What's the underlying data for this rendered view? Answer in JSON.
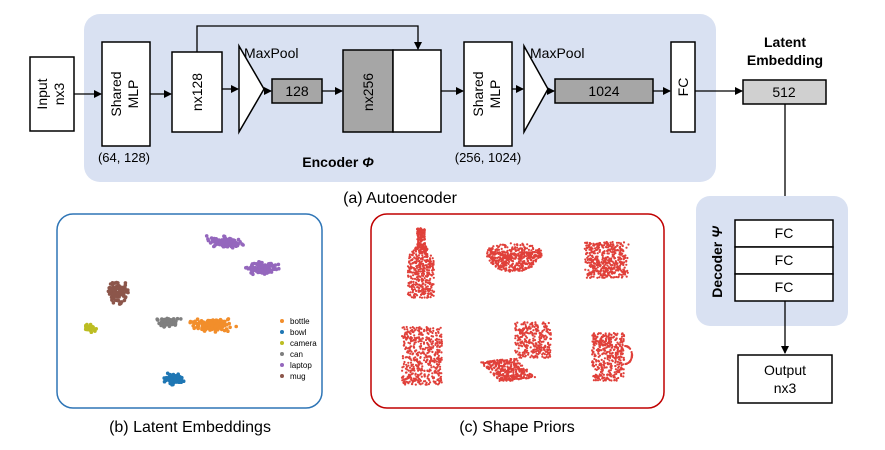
{
  "encoder": {
    "title_text": "Encoder ",
    "title_symbol": "Φ",
    "input_line1": "Input",
    "input_line2": "nx3",
    "mlp1_line1": "Shared",
    "mlp1_line2": "MLP",
    "mlp1_params": "(64, 128)",
    "feat1": "nx128",
    "maxpool1": "MaxPool",
    "global1": "128",
    "concat": "nx256",
    "mlp2_line1": "Shared",
    "mlp2_line2": "MLP",
    "mlp2_params": "(256, 1024)",
    "maxpool2": "MaxPool",
    "global2": "1024",
    "fc": "FC"
  },
  "latent": {
    "title_line1": "Latent",
    "title_line2": "Embedding",
    "value": "512"
  },
  "decoder": {
    "title_text": "Decoder ",
    "title_symbol": "Ψ",
    "layers": [
      "FC",
      "FC",
      "FC"
    ],
    "output_line1": "Output",
    "output_line2": "nx3"
  },
  "captions": {
    "a": "(a) Autoencoder",
    "b": "(b) Latent Embeddings",
    "c": "(c) Shape Priors"
  },
  "embedding_panel": {
    "legend": [
      {
        "label": "bottle",
        "color": "#f28e2b"
      },
      {
        "label": "bowl",
        "color": "#1f77b4"
      },
      {
        "label": "camera",
        "color": "#bcbd22"
      },
      {
        "label": "can",
        "color": "#7f7f7f"
      },
      {
        "label": "laptop",
        "color": "#9467bd"
      },
      {
        "label": "mug",
        "color": "#8c564b"
      }
    ],
    "border_color": "#2e75b6"
  },
  "priors_panel": {
    "border_color": "#c00000",
    "point_color": "#e0403a",
    "shapes": [
      "bottle",
      "bowl",
      "camera",
      "can",
      "laptop",
      "mug"
    ]
  },
  "colors": {
    "encoder_bg": "#d9e1f2",
    "box_gray": "#a6a6a6",
    "latent_gray": "#d0d0d0"
  }
}
